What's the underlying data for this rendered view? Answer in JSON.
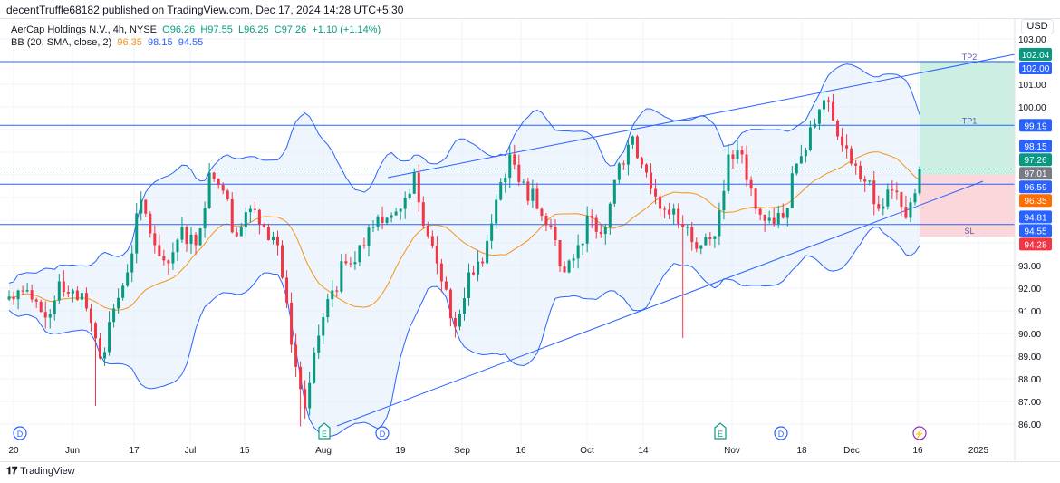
{
  "publisher_line": "decentTruffle68182 published on TradingView.com, Dec 17, 2024 14:28 UTC+5:30",
  "legend": {
    "symbol": "AerCap Holdings N.V., 4h, NYSE",
    "open": "O96.26",
    "high": "H97.55",
    "low": "L96.25",
    "close": "C97.26",
    "change": "+1.10 (+1.14%)",
    "bb_label": "BB (20, SMA, close, 2)",
    "bb_mid": "96.35",
    "bb_upper": "98.15",
    "bb_lower": "94.55"
  },
  "currency": "USD",
  "brand": "TradingView",
  "colors": {
    "up": "#089981",
    "down": "#f23645",
    "basis": "#f7931a",
    "bands": "#2962ff",
    "band_fill": "#e3effa",
    "tp_zone": "#cdeee3",
    "sl_zone": "#fbd6da"
  },
  "chart_data": {
    "type": "candlestick",
    "y_range": [
      85.7,
      103.0
    ],
    "y_ticks": [
      "103.00",
      "101.00",
      "100.00",
      "93.00",
      "92.00",
      "91.00",
      "90.00",
      "89.00",
      "88.00",
      "87.00",
      "86.00"
    ],
    "x_ticks": [
      "20",
      "Jun",
      "17",
      "Jul",
      "15",
      "Aug",
      "19",
      "Sep",
      "16",
      "Oct",
      "14",
      "Nov",
      "18",
      "Dec",
      "16",
      "2025"
    ],
    "closes": [
      91.5,
      91.9,
      91.5,
      90.7,
      92.3,
      91.9,
      91.1,
      88.9,
      91.1,
      92.7,
      95.9,
      93.9,
      93.1,
      94.7,
      93.9,
      97.1,
      96.3,
      94.3,
      95.5,
      94.7,
      93.9,
      89.5,
      86.7,
      89.9,
      91.9,
      93.1,
      93.9,
      94.7,
      95.1,
      95.5,
      97.1,
      94.3,
      92.3,
      90.3,
      92.7,
      93.1,
      95.9,
      97.9,
      96.7,
      95.5,
      94.7,
      92.7,
      93.9,
      95.1,
      94.7,
      97.5,
      98.7,
      97.1,
      95.5,
      95.5,
      94.7,
      93.9,
      94.3,
      97.9,
      97.9,
      95.5,
      95.1,
      95.1,
      97.5,
      99.1,
      100.3,
      98.7,
      97.5,
      96.7,
      95.5,
      96.3,
      95.1,
      97.26
    ],
    "notable_lows": [
      {
        "index": 7,
        "low": 86.8
      },
      {
        "index": 22,
        "low": 85.9
      },
      {
        "index": 50,
        "low": 89.8
      }
    ],
    "bollinger": {
      "length": 20,
      "type": "SMA",
      "source": "close",
      "mult": 2
    },
    "horizontal_lines": [
      {
        "price": 102.0,
        "label": "TP2"
      },
      {
        "price": 99.19,
        "label": "TP1"
      },
      {
        "price": 96.59,
        "label": ""
      },
      {
        "price": 94.81,
        "label": ""
      }
    ],
    "trendlines": [
      {
        "from": {
          "x_tick": "19",
          "price": 96.88
        },
        "to": {
          "x_tick": "2025",
          "price": 102.32
        }
      },
      {
        "from": {
          "x_tick": "Aug",
          "price": 85.92
        },
        "to": {
          "x_tick": "2025",
          "price": 96.72
        }
      }
    ],
    "position": {
      "entry": 97.01,
      "target": 102.04,
      "stop": 94.28,
      "sl_label": "SL"
    },
    "price_labels": [
      {
        "v": "102.04",
        "c": "#089981"
      },
      {
        "v": "102.00",
        "c": "#2962ff"
      },
      {
        "v": "99.19",
        "c": "#2962ff"
      },
      {
        "v": "98.15",
        "c": "#2962ff"
      },
      {
        "v": "97.26",
        "c": "#089981"
      },
      {
        "v": "97.01",
        "c": "#787b86"
      },
      {
        "v": "96.59",
        "c": "#2962ff"
      },
      {
        "v": "96.35",
        "c": "#ff6d00"
      },
      {
        "v": "94.81",
        "c": "#2962ff"
      },
      {
        "v": "94.55",
        "c": "#2962ff"
      },
      {
        "v": "94.28",
        "c": "#f23645"
      }
    ],
    "events": [
      {
        "type": "D",
        "label": "D"
      },
      {
        "type": "E",
        "label": "E"
      },
      {
        "type": "D",
        "label": "D"
      },
      {
        "type": "E",
        "label": "E"
      },
      {
        "type": "D",
        "label": "D"
      },
      {
        "type": "split",
        "label": "⚡"
      }
    ]
  }
}
